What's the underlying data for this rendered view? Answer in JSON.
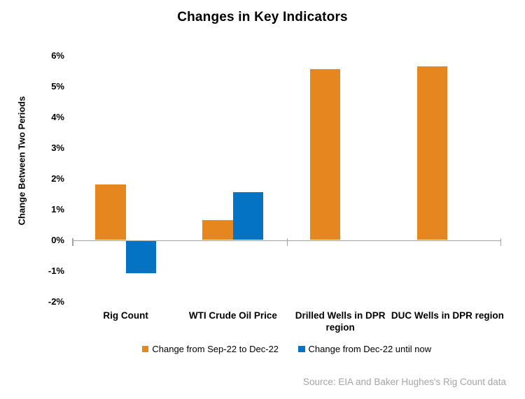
{
  "title": "Changes in Key Indicators",
  "colors": {
    "orange": "#E5861E",
    "blue": "#0573C4",
    "axis_gray": "#A3A3A3",
    "source_gray": "#A6A6A6",
    "text_black": "#000000"
  },
  "chart_data": {
    "type": "bar",
    "title": "Changes in Key Indicators",
    "categories": [
      "Rig Count",
      "WTI Crude Oil Price",
      "Drilled Wells in DPR region",
      "DUC Wells in DPR region"
    ],
    "series": [
      {
        "name": "Change from Sep-22 to Dec-22",
        "color": "#E5861E",
        "values": [
          1.8,
          0.65,
          5.55,
          5.65
        ]
      },
      {
        "name": "Change from Dec-22 until now",
        "color": "#0573C4",
        "values": [
          -1.05,
          1.55,
          null,
          null
        ]
      }
    ],
    "xlabel": "",
    "ylabel": "Change Between Two Periods",
    "ylim": [
      -2,
      6
    ],
    "y_ticks": [
      "6%",
      "5%",
      "4%",
      "3%",
      "2%",
      "1%",
      "0%",
      "-1%",
      "-2%"
    ],
    "y_tick_format": "percent",
    "grid": false,
    "legend_position": "bottom",
    "source": "Source: EIA and Baker Hughes's Rig Count data"
  }
}
